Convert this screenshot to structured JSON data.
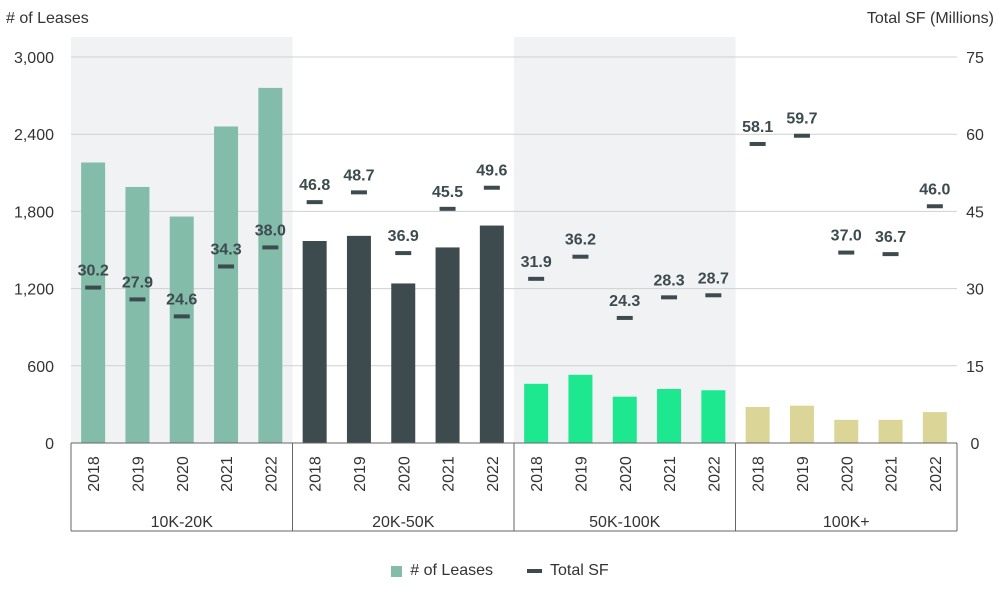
{
  "chart_data": {
    "type": "bar",
    "left_axis_title": "# of Leases",
    "right_axis_title": "Total SF (Millions)",
    "left_ticks": [
      "0",
      "600",
      "1,200",
      "1,800",
      "2,400",
      "3,000"
    ],
    "right_ticks": [
      "0",
      "15",
      "30",
      "45",
      "60",
      "75"
    ],
    "ylim_left": [
      0,
      3000
    ],
    "ylim_right": [
      0,
      75
    ],
    "grid": true,
    "legend_position": "bottom-center",
    "legend": [
      {
        "label": "# of Leases",
        "marker": "square",
        "color": "#84bcaa"
      },
      {
        "label": "Total SF",
        "marker": "line",
        "color": "#3d4b4f"
      }
    ],
    "groups": [
      {
        "name": "10K-20K",
        "color": "#84bcaa",
        "shaded": true,
        "years": [
          "2018",
          "2019",
          "2020",
          "2021",
          "2022"
        ],
        "leases": [
          2180,
          1990,
          1760,
          2460,
          2760
        ],
        "total_sf": [
          30.2,
          27.9,
          24.6,
          34.3,
          38.0
        ],
        "total_sf_labels": [
          "30.2",
          "27.9",
          "24.6",
          "34.3",
          "38.0"
        ]
      },
      {
        "name": "20K-50K",
        "color": "#3d4b4f",
        "shaded": false,
        "years": [
          "2018",
          "2019",
          "2020",
          "2021",
          "2022"
        ],
        "leases": [
          1570,
          1610,
          1240,
          1520,
          1690
        ],
        "total_sf": [
          46.8,
          48.7,
          36.9,
          45.5,
          49.6
        ],
        "total_sf_labels": [
          "46.8",
          "48.7",
          "36.9",
          "45.5",
          "49.6"
        ]
      },
      {
        "name": "50K-100K",
        "color": "#1ee88f",
        "shaded": true,
        "years": [
          "2018",
          "2019",
          "2020",
          "2021",
          "2022"
        ],
        "leases": [
          460,
          530,
          360,
          420,
          410
        ],
        "total_sf": [
          31.9,
          36.2,
          24.3,
          28.3,
          28.7
        ],
        "total_sf_labels": [
          "31.9",
          "36.2",
          "24.3",
          "28.3",
          "28.7"
        ]
      },
      {
        "name": "100K+",
        "color": "#dbd697",
        "shaded": false,
        "years": [
          "2018",
          "2019",
          "2020",
          "2021",
          "2022"
        ],
        "leases": [
          280,
          290,
          180,
          180,
          240
        ],
        "total_sf": [
          58.1,
          59.7,
          37.0,
          36.7,
          46.0
        ],
        "total_sf_labels": [
          "58.1",
          "59.7",
          "37.0",
          "36.7",
          "46.0"
        ]
      }
    ],
    "colors": {
      "sf_marker": "#3d4b4f",
      "shade": "#f0f2f4",
      "grid": "#d0d0d0",
      "axis": "#666666"
    }
  }
}
